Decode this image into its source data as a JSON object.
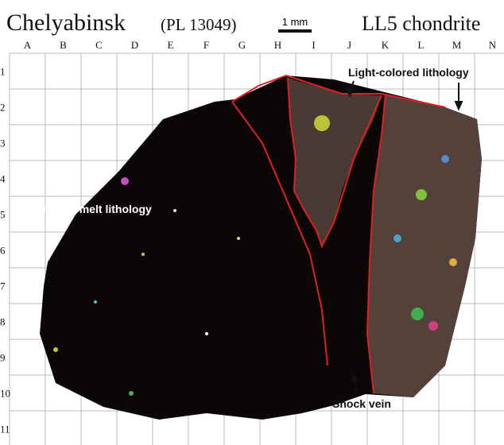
{
  "header": {
    "title": "Chelyabinsk",
    "sample": "(PL 13049)",
    "scale_label": "1 mm",
    "classification": "LL5 chondrite"
  },
  "columns": [
    "A",
    "B",
    "C",
    "D",
    "E",
    "F",
    "G",
    "H",
    "I",
    "J",
    "K",
    "L",
    "M",
    "N"
  ],
  "rows": [
    "1",
    "2",
    "3",
    "4",
    "5",
    "6",
    "7",
    "8",
    "9",
    "10",
    "11"
  ],
  "annotations": {
    "light": "Light-colored lithology",
    "impact": "Impact-melt lithology",
    "shock": "Shock vein"
  }
}
